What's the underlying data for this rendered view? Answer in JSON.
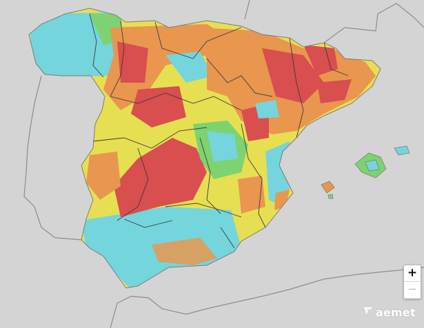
{
  "map": {
    "palette": {
      "sea_land_background": "#d4d4d4",
      "border_line": "#8c8c8c",
      "province_line": "#3a3a3a",
      "very_low": "#74d5dc",
      "low": "#7cd36f",
      "moderate": "#e6df52",
      "high": "#e9964f",
      "very_high": "#d94e4e"
    }
  },
  "controls": {
    "zoom_in_label": "+",
    "zoom_out_label": "−"
  },
  "brand": {
    "logo_text": "aemet",
    "logo_icon": "aemet-logo-icon"
  }
}
